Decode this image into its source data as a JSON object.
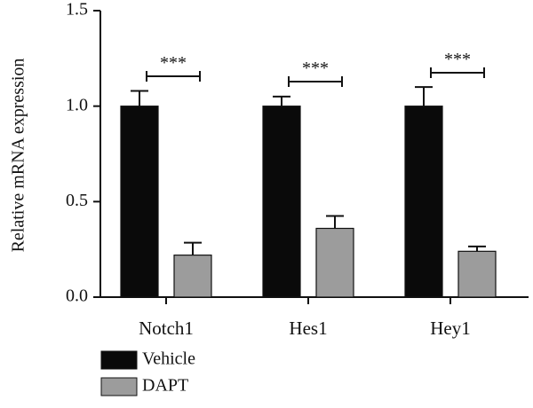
{
  "chart_data": {
    "type": "bar",
    "title": "",
    "xlabel": "",
    "ylabel": "Relative mRNA expression",
    "ylim": [
      0,
      1.5
    ],
    "yticks": [
      "0.0",
      "0.5",
      "1.0",
      "1.5"
    ],
    "categories": [
      "Notch1",
      "Hes1",
      "Hey1"
    ],
    "series": [
      {
        "name": "Vehicle",
        "color": "#0a0a0a",
        "values": [
          1.0,
          1.0,
          1.0
        ],
        "errors": [
          0.08,
          0.05,
          0.1
        ]
      },
      {
        "name": "DAPT",
        "color": "#9c9c9c",
        "values": [
          0.22,
          0.36,
          0.24
        ],
        "errors": [
          0.065,
          0.065,
          0.025
        ]
      }
    ],
    "significance": [
      {
        "category": "Notch1",
        "label": "***"
      },
      {
        "category": "Hes1",
        "label": "***"
      },
      {
        "category": "Hey1",
        "label": "***"
      }
    ],
    "legend_position": "bottom-left",
    "grid": false
  }
}
